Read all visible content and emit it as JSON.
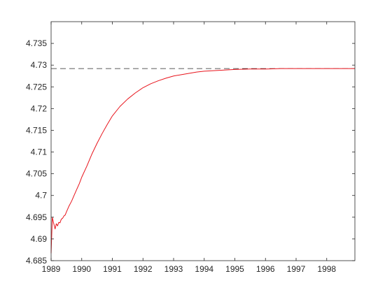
{
  "chart_data": {
    "type": "line",
    "title": "",
    "xlabel": "",
    "ylabel": "",
    "xlim": [
      1989,
      1998.92
    ],
    "ylim": [
      4.685,
      4.74
    ],
    "xticks": [
      1989,
      1990,
      1991,
      1992,
      1993,
      1994,
      1995,
      1996,
      1997,
      1998
    ],
    "xtick_labels": [
      "1989",
      "1990",
      "1991",
      "1992",
      "1993",
      "1994",
      "1995",
      "1996",
      "1997",
      "1998"
    ],
    "yticks": [
      4.685,
      4.69,
      4.695,
      4.7,
      4.705,
      4.71,
      4.715,
      4.72,
      4.725,
      4.73,
      4.735
    ],
    "ytick_labels": [
      "4.685",
      "4.69",
      "4.695",
      "4.7",
      "4.705",
      "4.71",
      "4.715",
      "4.72",
      "4.725",
      "4.73",
      "4.735"
    ],
    "grid": false,
    "legend": "none",
    "reference_line": {
      "y": 4.7292,
      "style": "dashed",
      "color": "#262626"
    },
    "series": [
      {
        "color": "#e8141c",
        "x": [
          1989.0,
          1989.04,
          1989.08,
          1989.13,
          1989.17,
          1989.21,
          1989.25,
          1989.29,
          1989.33,
          1989.38,
          1989.42,
          1989.46,
          1989.5,
          1989.58,
          1989.67,
          1989.75,
          1989.83,
          1989.92,
          1990.0,
          1990.17,
          1990.33,
          1990.5,
          1990.67,
          1990.83,
          1991.0,
          1991.25,
          1991.5,
          1991.75,
          1992.0,
          1992.25,
          1992.5,
          1992.75,
          1993.0,
          1993.25,
          1993.5,
          1993.75,
          1994.0,
          1994.5,
          1995.0,
          1995.5,
          1996.0,
          1996.5,
          1997.0,
          1997.5,
          1998.0,
          1998.5,
          1998.92
        ],
        "values": [
          4.6867,
          4.695,
          4.6937,
          4.6923,
          4.6935,
          4.693,
          4.6938,
          4.6937,
          4.6945,
          4.6948,
          4.6953,
          4.6955,
          4.6962,
          4.6975,
          4.6987,
          4.7,
          4.7013,
          4.7027,
          4.7042,
          4.7068,
          4.7095,
          4.712,
          4.7143,
          4.7163,
          4.7183,
          4.7205,
          4.7222,
          4.7236,
          4.7248,
          4.7257,
          4.7264,
          4.727,
          4.7275,
          4.7278,
          4.7281,
          4.7284,
          4.7286,
          4.7288,
          4.729,
          4.7291,
          4.7291,
          4.7292,
          4.7292,
          4.7292,
          4.7292,
          4.7292,
          4.7292
        ]
      }
    ]
  }
}
